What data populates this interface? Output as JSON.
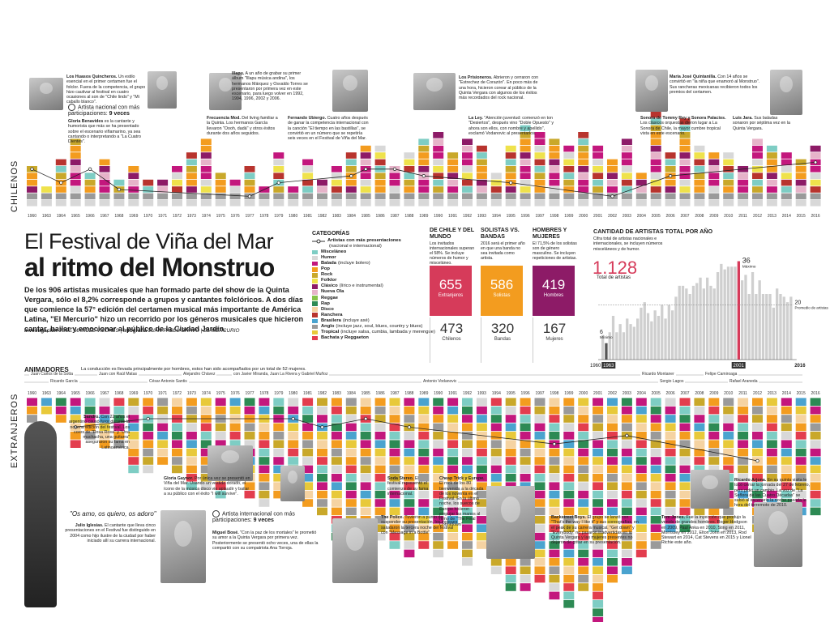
{
  "title": {
    "line1": "El Festival de Viña del Mar",
    "line2": "al ritmo del Monstruo"
  },
  "intro": "De los 906 artistas musicales que han formado parte del show de la Quinta Vergara, sólo el 8,2% corresponde a grupos y cantantes folclóricos. A dos días que comience la 57° edición del certamen musical más importante de América Latina, \"El Mercurio\" hizo un recorrido por los géneros musicales que hicieron cantar, bailar y emocionar al público de la Ciudad Jardín.",
  "credits": {
    "inv_label": "Investigación",
    "inv": "JOSÉ MANUEL VILCHES",
    "inf_label": "Infografía",
    "inf": "JUAN PABLO BRAVO | EL MERCURIO"
  },
  "sections": {
    "chilenos": "CHILENOS",
    "extranjeros": "EXTRANJEROS"
  },
  "legend": {
    "title": "CATEGORÍAS",
    "line_item": {
      "label": "Artistas con más presentaciones",
      "note": "(nacional e internacional)"
    },
    "items": [
      {
        "label": "Misceláneo",
        "note": "",
        "color": "#7ecdc4"
      },
      {
        "label": "Humor",
        "note": "",
        "color": "#d8d8d8"
      },
      {
        "label": "Balada",
        "note": "(incluye bolero)",
        "color": "#c3177d"
      },
      {
        "label": "Pop",
        "note": "",
        "color": "#f39c1f"
      },
      {
        "label": "Rock",
        "note": "",
        "color": "#c9a82a"
      },
      {
        "label": "Folklor",
        "note": "",
        "color": "#efe24c"
      },
      {
        "label": "Clásico",
        "note": "(lírico e instrumental)",
        "color": "#8d1b67"
      },
      {
        "label": "Nueva Ola",
        "note": "",
        "color": "#e6b3c9"
      },
      {
        "label": "Reggae",
        "note": "",
        "color": "#87c24a"
      },
      {
        "label": "Rap",
        "note": "",
        "color": "#2d8a54"
      },
      {
        "label": "Disco",
        "note": "",
        "color": "#f5d3a2"
      },
      {
        "label": "Ranchera",
        "note": "",
        "color": "#b8342e"
      },
      {
        "label": "Brasilera",
        "note": "(incluye axé)",
        "color": "#4aa3cf"
      },
      {
        "label": "Anglo",
        "note": "(incluye jazz, soul, blues, country y blues)",
        "color": "#9a9a9a"
      },
      {
        "label": "Tropical",
        "note": "(incluye salsa, cumbia, lambada y merengue)",
        "color": "#e8c93a"
      },
      {
        "label": "Bachata y Reggaeton",
        "note": "",
        "color": "#e33d4e"
      }
    ]
  },
  "comparisons": [
    {
      "id": "chile-mundo",
      "heading": "DE CHILE Y DEL MUNDO",
      "text": "Los invitados internacionales superan el 58%. Se incluye números de humor y misceláneo.",
      "top_value": "655",
      "top_label": "Extranjeros",
      "top_color": "#d63b5a",
      "bottom_value": "473",
      "bottom_label": "Chilenos"
    },
    {
      "id": "solistas-bandas",
      "heading": "SOLISTAS VS. BANDAS",
      "text": "2016 será el primer año en que una banda no sea invitada como artista.",
      "top_value": "586",
      "top_label": "Solistas",
      "top_color": "#f39c1f",
      "bottom_value": "320",
      "bottom_label": "Bandas"
    },
    {
      "id": "hombres-mujeres",
      "heading": "HOMBRES Y MUJERES",
      "text": "El 71,5% de los solistas son de género masculino. Se incluyen repeticiones de artistas.",
      "top_value": "419",
      "top_label": "Hombres",
      "top_color": "#8d1b67",
      "bottom_value": "167",
      "bottom_label": "Mujeres"
    }
  ],
  "totals": {
    "heading": "CANTIDAD DE ARTISTAS TOTAL POR AÑO",
    "text": "Cifra total de artistas nacionales e internacionales, se incluyen números misceláneos y de humor.",
    "big": "1.128",
    "big_label": "Total de artistas",
    "max_value": "36",
    "max_label": "Máximo",
    "min_value": "6",
    "min_label": "Mínimo",
    "avg_value": "20",
    "avg_label": "Promedio de artistas",
    "start_year": "1960",
    "min_year": "1963",
    "max_year": "2001",
    "end_year": "2016"
  },
  "animadores": {
    "heading": "ANIMADORES",
    "text": "La conducción es llevada principalmente por hombres, estos han sido acompañados por un total de 52 mujeres.",
    "names": [
      "Juan Carlos de la Sotta",
      "Ricardo García",
      "Juan con Raúl Matas",
      "César Antonio Santis",
      "Alejandro Chávez",
      "con Javier Miranda, Juan La Rivera y Gabriel Muñoz",
      "Antonio Vodanovic",
      "Ricardo Montaner",
      "Sergio Lagos",
      "Felipe Camiroaga",
      "Rafael Araneda"
    ]
  },
  "chart_data": [
    {
      "type": "bar",
      "title": "CHILENOS",
      "categories": [
        "1960",
        "1963",
        "1964",
        "1965",
        "1966",
        "1967",
        "1968",
        "1969",
        "1970",
        "1971",
        "1972",
        "1973",
        "1974",
        "1975",
        "1976",
        "1977",
        "1978",
        "1979",
        "1980",
        "1981",
        "1982",
        "1983",
        "1984",
        "1985",
        "1986",
        "1987",
        "1988",
        "1989",
        "1990",
        "1991",
        "1992",
        "1993",
        "1994",
        "1995",
        "1996",
        "1997",
        "1998",
        "1999",
        "2000",
        "2001",
        "2002",
        "2003",
        "2004",
        "2005",
        "2006",
        "2007",
        "2008",
        "2009",
        "2010",
        "2011",
        "2012",
        "2013",
        "2014",
        "2015",
        "2016"
      ],
      "values": [
        6,
        3,
        7,
        10,
        5,
        7,
        4,
        6,
        4,
        4,
        6,
        8,
        10,
        5,
        4,
        6,
        3,
        8,
        3,
        7,
        4,
        6,
        8,
        9,
        9,
        6,
        8,
        10,
        11,
        8,
        10,
        9,
        5,
        9,
        12,
        11,
        10,
        9,
        11,
        9,
        7,
        10,
        5,
        14,
        8,
        13,
        9,
        8,
        8,
        6,
        10,
        9,
        8,
        7,
        9
      ],
      "line": {
        "name": "Artistas con más presentaciones",
        "points": [
          {
            "x": "1960",
            "y": 5
          },
          {
            "x": "1964",
            "y": 3
          },
          {
            "x": "1966",
            "y": 5
          },
          {
            "x": "1968",
            "y": 2
          },
          {
            "x": "1977",
            "y": 1
          },
          {
            "x": "1979",
            "y": 3
          },
          {
            "x": "1984",
            "y": 4
          },
          {
            "x": "1985",
            "y": 5
          },
          {
            "x": "1987",
            "y": 5
          },
          {
            "x": "1989",
            "y": 4
          },
          {
            "x": "1995",
            "y": 3
          },
          {
            "x": "2002",
            "y": 1
          },
          {
            "x": "2006",
            "y": 4
          },
          {
            "x": "2016",
            "y": 6
          }
        ]
      },
      "ylim": [
        0,
        15
      ]
    },
    {
      "type": "bar",
      "title": "EXTRANJEROS",
      "categories": [
        "1960",
        "1963",
        "1964",
        "1965",
        "1966",
        "1967",
        "1968",
        "1969",
        "1970",
        "1971",
        "1972",
        "1973",
        "1974",
        "1975",
        "1976",
        "1977",
        "1978",
        "1979",
        "1980",
        "1981",
        "1982",
        "1983",
        "1984",
        "1985",
        "1986",
        "1987",
        "1988",
        "1989",
        "1990",
        "1991",
        "1992",
        "1993",
        "1994",
        "1995",
        "1996",
        "1997",
        "1998",
        "1999",
        "2000",
        "2001",
        "2002",
        "2003",
        "2004",
        "2005",
        "2006",
        "2007",
        "2008",
        "2009",
        "2010",
        "2011",
        "2012",
        "2013",
        "2014",
        "2015",
        "2016"
      ],
      "values": [
        3,
        2,
        3,
        6,
        5,
        6,
        6,
        9,
        9,
        8,
        9,
        11,
        11,
        12,
        10,
        12,
        13,
        12,
        12,
        13,
        14,
        17,
        19,
        18,
        17,
        18,
        19,
        18,
        19,
        18,
        20,
        18,
        21,
        23,
        23,
        22,
        24,
        25,
        23,
        27,
        22,
        21,
        19,
        18,
        16,
        16,
        15,
        16,
        16,
        13,
        16,
        15,
        15,
        14,
        14
      ],
      "line": {
        "name": "Artistas con más presentaciones",
        "points": [
          {
            "x": "1965",
            "y": 3
          },
          {
            "x": "1970",
            "y": 2
          },
          {
            "x": "1980",
            "y": 2
          },
          {
            "x": "1982",
            "y": 3
          },
          {
            "x": "1985",
            "y": 2
          },
          {
            "x": "1988",
            "y": 3
          },
          {
            "x": "1998",
            "y": 5
          },
          {
            "x": "2003",
            "y": 4
          },
          {
            "x": "2012",
            "y": 7
          }
        ]
      },
      "ylim": [
        0,
        27
      ]
    },
    {
      "type": "bar",
      "title": "CANTIDAD DE ARTISTAS TOTAL POR AÑO",
      "categories": [
        "1960",
        "1963",
        "1964",
        "1965",
        "1966",
        "1967",
        "1968",
        "1969",
        "1970",
        "1971",
        "1972",
        "1973",
        "1974",
        "1975",
        "1976",
        "1977",
        "1978",
        "1979",
        "1980",
        "1981",
        "1982",
        "1983",
        "1984",
        "1985",
        "1986",
        "1987",
        "1988",
        "1989",
        "1990",
        "1991",
        "1992",
        "1993",
        "1994",
        "1995",
        "1996",
        "1997",
        "1998",
        "1999",
        "2000",
        "2001",
        "2002",
        "2003",
        "2004",
        "2005",
        "2006",
        "2007",
        "2008",
        "2009",
        "2010",
        "2011",
        "2012",
        "2013",
        "2014",
        "2015",
        "2016"
      ],
      "values": [
        9,
        6,
        10,
        16,
        10,
        13,
        10,
        15,
        13,
        12,
        15,
        19,
        21,
        17,
        14,
        18,
        16,
        20,
        15,
        20,
        18,
        23,
        27,
        27,
        26,
        24,
        27,
        28,
        30,
        26,
        30,
        27,
        26,
        32,
        35,
        33,
        34,
        34,
        34,
        36,
        29,
        31,
        24,
        32,
        24,
        29,
        24,
        24,
        24,
        19,
        26,
        24,
        23,
        21,
        23
      ],
      "ylim": [
        0,
        40
      ]
    }
  ],
  "notes": [
    {
      "id": "huasos",
      "name": "Los Huasos Quincheros.",
      "text": "Un estilo esencial en el primer certamen fue el folclor. Fuera de la competencia, el grupo hizo cautivar al festival en cuatro ocasiones al son de \"Chile lindo\" y \"Mi caballo blanco\"."
    },
    {
      "id": "artista-nacional",
      "name": "Artista nacional con más participaciones:",
      "text": "9 veces"
    },
    {
      "id": "gloria-benavides",
      "name": "Gloria Benavides",
      "text": "es la cantante y humorista que más se ha presentado sobre el escenario viñamarino, ya sea cantando o interpretando a \"La Cuatro Dientes\"."
    },
    {
      "id": "illapu",
      "name": "Illapu.",
      "text": "A un año de grabar su primer álbum \"Illapu música andina\", los hermanos Márquez y Osvaldo Torres se presentaron por primera vez en este escenario, para luego volver en 1992, 1994, 1996, 2002 y 2006."
    },
    {
      "id": "frecuencia-mod",
      "name": "Frecuencia Mod.",
      "text": "Del living familiar a la Quinta. Los hermanos García llevaron \"Oooh, dadá\" y otros éxitos durante dos años seguidos."
    },
    {
      "id": "fernando-ubiergo",
      "name": "Fernando Ubiergo.",
      "text": "Cuatro años después de ganar la competencia internacional con la canción \"El tiempo en las bastillas\", se convirtió en un número que se repetiría seis veces en el Festival de Viña del Mar."
    },
    {
      "id": "los-prisioneros",
      "name": "Los Prisioneros.",
      "text": "Abrieron y cerraron con \"Estrechez de Corazón\". En poco más de una hora, hicieron corear al público de la Quinta Vergara con algunos de los éxitos más recordados del rock nacional."
    },
    {
      "id": "la-ley",
      "name": "La Ley.",
      "text": "\"Atención juventud: comenzó en ton \"Desiertos\", después vino \"Doble Opuesto\" y ahora son ellos, con nombre y apellido\", exclamó Vodanovic al presentarlos."
    },
    {
      "id": "maria-jose",
      "name": "María José Quintanilla.",
      "text": "Con 14 años se convirtió en \"la niña que enamoró al Monstruo\". Sus rancheras mexicanas recibieron todos los premios del certamen."
    },
    {
      "id": "sonora-tommy-rey",
      "name": "Sonora de Tommy Rey y Sonora Palacios.",
      "text": "Los clásicos orquestas dieron lugar a La Sonora de Chile, la mayor cumbre tropical vista en este escenario."
    },
    {
      "id": "luis-jara",
      "name": "Luis Jara.",
      "text": "Sus baladas sonaron por séptima vez en la Quinta Vergara."
    },
    {
      "id": "sandro",
      "name": "Sandro.",
      "text": "Con 22 años el argentino causó furor durante la novena edición del festival. Los coros de \"Rosa Rosa\" y \"Una muchacha, una guitarra\" aseguraron su fama en Latinoamérica."
    },
    {
      "id": "gloria-gaynor",
      "name": "Gloria Gaynor.",
      "text": "Por única vez se presentó en Viña del Mar. Usando un vestido dorado, el ícono de la música disco vio aplaudir y bailar a su público con el éxito \"I will survive\"."
    },
    {
      "id": "soda-stereo",
      "name": "Soda Stereo.",
      "text": "El festival representó el comienzo de su fama internacional."
    },
    {
      "id": "cheap-trick",
      "name": "Cheap Trick y Europe.",
      "text": "El rock de los 80 bienvenida a la década de los noventa en el Festival. En la última noche, los suecos de Europe hicieron empujar las manos al ritmo de \"The Final Countdown\"."
    },
    {
      "id": "backstreet-boys",
      "name": "Backstreet Boys.",
      "text": "El grupo se lanzó con \"That's the way I like it\" y sus coreografías, en el peak de su carrera musical. \"Get down\" y \"Everybody\" no pasaron inadvertidas en la Quinta Vergara y las mujeres presentes no dejaron de gritar en su presentación."
    },
    {
      "id": "ricardo-arjona",
      "name": "Ricardo Arjona.",
      "text": "En su quinta visita le tocó cerrar la jornada del 27 de febrero, pero pidió un cambio. La voz de \"La Señora de las Cuatro Décadas\" se subió al escenario la noche pasada la hora del terremoto de 2010."
    },
    {
      "id": "tom-jones",
      "name": "Tom Jones.",
      "text": "Fue la inyección que produjo la venida de grandes hombres. Roger Hodgson en 2009, Paul Anka en 2010, Sting en 2011, Morrissey en 2012, Elton John en 2013, Rod Stewart en 2014, Cat Stevens en 2015 y Lionel Richie este año."
    },
    {
      "id": "julio-iglesias",
      "name": "Julio Iglesias.",
      "text": "El cantante que lleva cinco presentaciones en el Festival fue distinguido en 2004 como hijo ilustre de la ciudad por haber iniciado allí su carrera internacional."
    },
    {
      "id": "artista-internacional",
      "name": "Artista internacional con más participaciones:",
      "text": "9 veces"
    },
    {
      "id": "miguel-bose",
      "name": "Miguel Bosé.",
      "text": "\"Con la paz de los mortales\" le prometió su amor a la Quinta Vergara por primera vez. Posteriormente se presentó ocho veces, una de ellas la compartió con su compatriota Ana Torroja."
    },
    {
      "id": "the-police",
      "name": "The Police.",
      "text": "Tuvieron a punto de suspender su presentación, los ingleses saludaron la tercera noche del festival con \"Message in a Bottle\"."
    }
  ],
  "quote": "\"Os amo, os quiero, os adoro\""
}
